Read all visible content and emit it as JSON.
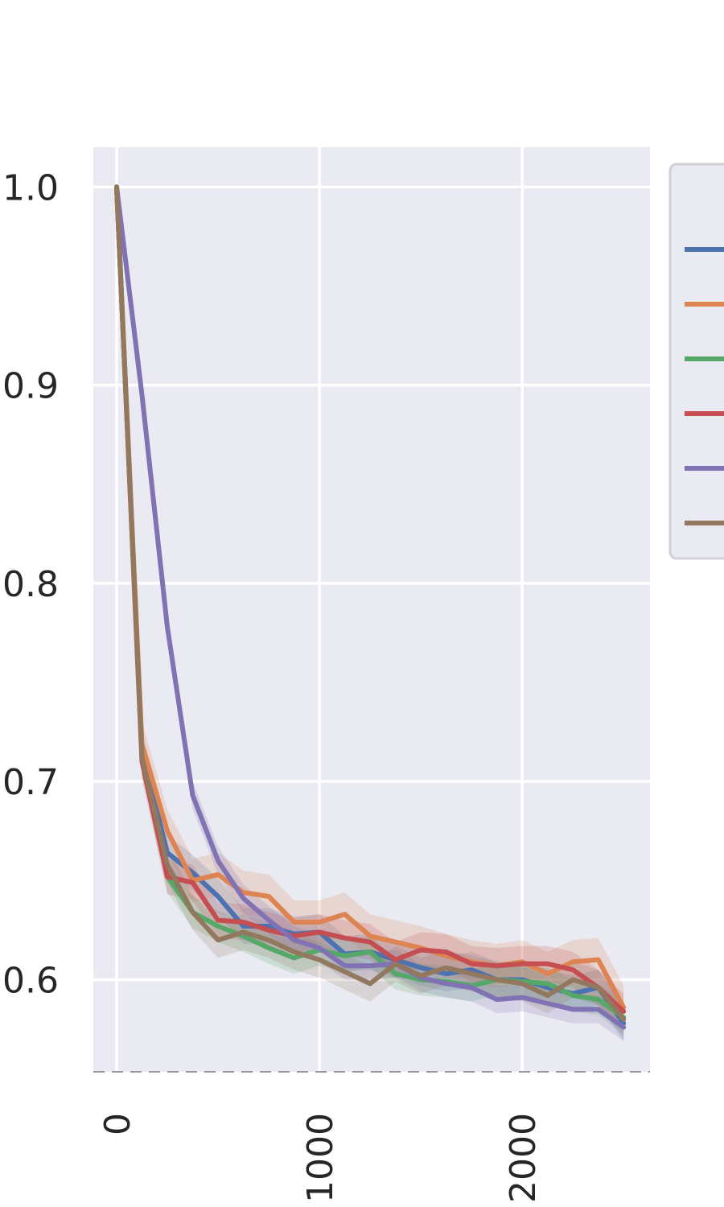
{
  "chart_data": {
    "type": "line",
    "title": "",
    "xlabel": "",
    "ylabel": "",
    "xlim": [
      -115,
      2630
    ],
    "ylim": [
      0.5535,
      1.02
    ],
    "xticks": [
      0,
      1000,
      2000
    ],
    "yticks": [
      0.6,
      0.7,
      0.8,
      0.9,
      1.0
    ],
    "xtick_labels": [
      "0",
      "1000",
      "2000"
    ],
    "ytick_labels": [
      "0.6",
      "0.7",
      "0.8",
      "0.9",
      "1.0"
    ],
    "grid": true,
    "legend": "right",
    "x": [
      0,
      125,
      250,
      375,
      500,
      625,
      750,
      875,
      1000,
      1125,
      1250,
      1375,
      1500,
      1625,
      1750,
      1875,
      2000,
      2125,
      2250,
      2375,
      2500
    ],
    "series": [
      {
        "color": "#4c72b0",
        "band": 0.009,
        "values": [
          1.0,
          0.715,
          0.664,
          0.654,
          0.642,
          0.627,
          0.627,
          0.623,
          0.624,
          0.613,
          0.614,
          0.61,
          0.606,
          0.603,
          0.605,
          0.6,
          0.6,
          0.596,
          0.593,
          0.596,
          0.578
        ]
      },
      {
        "color": "#dd8452",
        "band": 0.011,
        "values": [
          1.0,
          0.719,
          0.675,
          0.65,
          0.653,
          0.644,
          0.642,
          0.629,
          0.629,
          0.633,
          0.622,
          0.619,
          0.616,
          0.612,
          0.609,
          0.607,
          0.609,
          0.603,
          0.609,
          0.61,
          0.586
        ]
      },
      {
        "color": "#55a868",
        "band": 0.008,
        "values": [
          1.0,
          0.712,
          0.652,
          0.634,
          0.627,
          0.622,
          0.616,
          0.611,
          0.615,
          0.612,
          0.614,
          0.603,
          0.6,
          0.599,
          0.597,
          0.6,
          0.599,
          0.598,
          0.592,
          0.59,
          0.581
        ]
      },
      {
        "color": "#c44e52",
        "band": 0.009,
        "values": [
          1.0,
          0.71,
          0.652,
          0.649,
          0.63,
          0.629,
          0.625,
          0.622,
          0.624,
          0.621,
          0.619,
          0.61,
          0.615,
          0.614,
          0.608,
          0.607,
          0.608,
          0.608,
          0.605,
          0.596,
          0.584
        ]
      },
      {
        "color": "#8172b3",
        "band": 0.007,
        "values": [
          1.0,
          0.895,
          0.778,
          0.693,
          0.66,
          0.641,
          0.63,
          0.62,
          0.616,
          0.607,
          0.607,
          0.608,
          0.601,
          0.598,
          0.596,
          0.59,
          0.591,
          0.588,
          0.585,
          0.585,
          0.576
        ]
      },
      {
        "color": "#937860",
        "band": 0.009,
        "values": [
          1.0,
          0.712,
          0.658,
          0.634,
          0.62,
          0.624,
          0.62,
          0.614,
          0.61,
          0.604,
          0.598,
          0.608,
          0.602,
          0.606,
          0.603,
          0.6,
          0.598,
          0.592,
          0.6,
          0.596,
          0.58
        ]
      }
    ]
  }
}
